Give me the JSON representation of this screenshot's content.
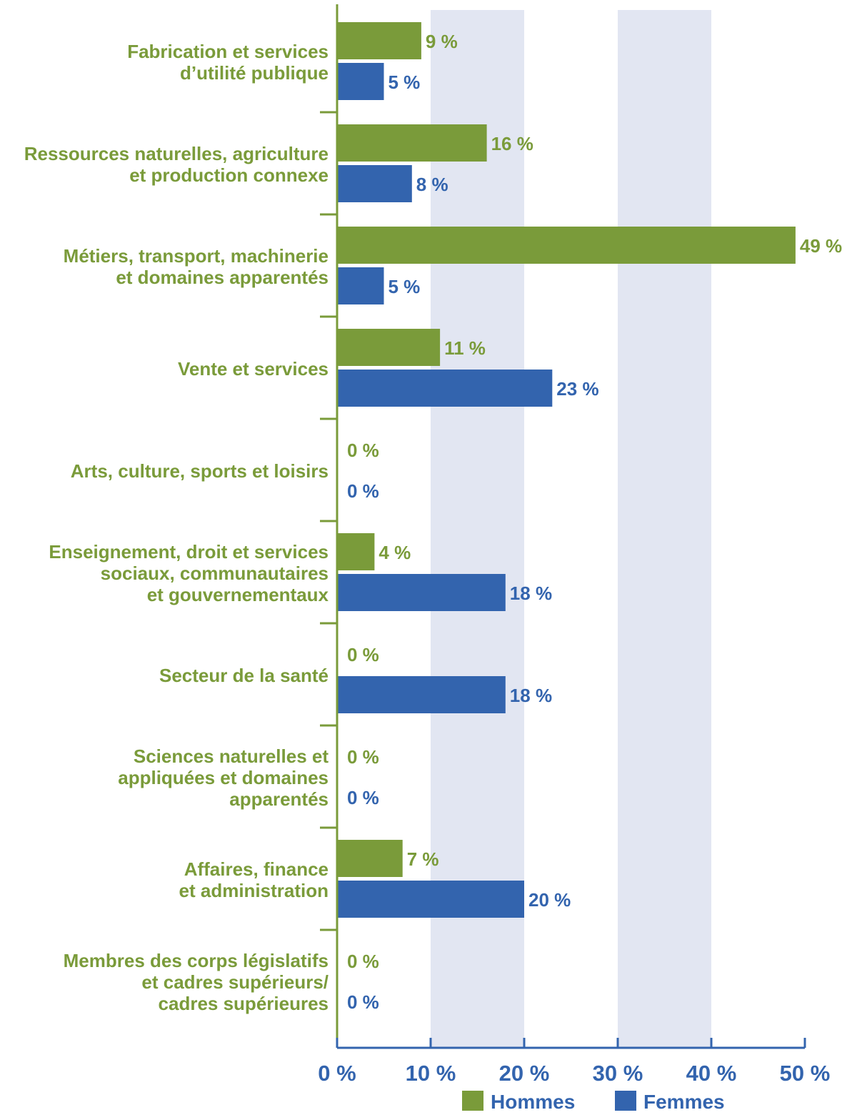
{
  "chart_data": {
    "type": "bar",
    "orientation": "horizontal",
    "categories": [
      [
        "Fabrication et services",
        "d’utilité publique"
      ],
      [
        "Ressources naturelles, agriculture",
        "et production connexe"
      ],
      [
        "Métiers, transport, machinerie",
        "et domaines apparentés"
      ],
      [
        "Vente et services"
      ],
      [
        "Arts, culture, sports et loisirs"
      ],
      [
        "Enseignement, droit et services",
        "sociaux, communautaires",
        "et gouvernementaux"
      ],
      [
        "Secteur de la santé"
      ],
      [
        "Sciences naturelles et",
        "appliquées et domaines",
        "apparentés"
      ],
      [
        "Affaires, finance",
        "et administration"
      ],
      [
        "Membres des corps législatifs",
        "et cadres supérieurs/",
        "cadres supérieures"
      ]
    ],
    "series": [
      {
        "name": "Hommes",
        "color": "#7a9b3a",
        "values": [
          9,
          16,
          49,
          11,
          0,
          4,
          0,
          0,
          7,
          0
        ],
        "labels": [
          "9 %",
          "16 %",
          "49 %",
          "11 %",
          "0 %",
          "4 %",
          "0 %",
          "0 %",
          "7 %",
          "0 %"
        ]
      },
      {
        "name": "Femmes",
        "color": "#3364ae",
        "values": [
          5,
          8,
          5,
          23,
          0,
          18,
          18,
          0,
          20,
          0
        ],
        "labels": [
          "5 %",
          "8 %",
          "5 %",
          "23 %",
          "0 %",
          "18 %",
          "18 %",
          "0 %",
          "20 %",
          "0 %"
        ]
      }
    ],
    "xlim": [
      0,
      50
    ],
    "x_ticks": [
      0,
      10,
      20,
      30,
      40,
      50
    ],
    "x_tick_labels": [
      "0 %",
      "10 %",
      "20 %",
      "30 %",
      "40 %",
      "50 %"
    ],
    "shaded_bands": [
      [
        10,
        20
      ],
      [
        30,
        40
      ]
    ],
    "band_color": "#e2e6f2",
    "legend_position": "bottom-right"
  }
}
